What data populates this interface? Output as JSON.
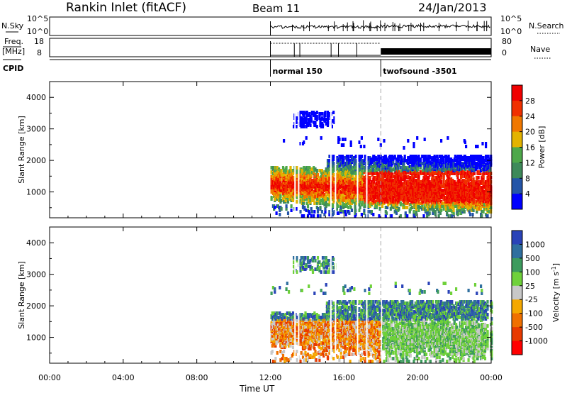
{
  "header": {
    "station": "Rankin Inlet (fitACF)",
    "beam": "Beam 11",
    "date": "24/Jan/2013"
  },
  "status_panels": {
    "nsky_label": "N.Sky",
    "nsearch_label": "N.Search",
    "nsky_ticks": [
      "10^5",
      "10^0"
    ],
    "nsky_right_ticks": [
      "10^5",
      "10^0"
    ],
    "freq_label": "Freq.",
    "freq_unit": "[MHz]",
    "freq_ticks": [
      "18",
      "8"
    ],
    "nave_label": "Nave",
    "nave_ticks": [
      "80",
      "0"
    ],
    "cpid_label": "CPID",
    "modes": [
      {
        "name": "normal 150",
        "start_hour": 12.0,
        "end_hour": 18.0
      },
      {
        "name": "twofsound -3501",
        "start_hour": 18.0,
        "end_hour": 24.0
      }
    ]
  },
  "chart_data": [
    {
      "type": "heatmap",
      "quantity": "power",
      "ylabel": "Slant Range [km]",
      "xlabel": "Time UT",
      "xlim": [
        0,
        24
      ],
      "ylim": [
        180,
        4500
      ],
      "x_ticks": [
        "00:00",
        "04:00",
        "08:00",
        "12:00",
        "16:00",
        "20:00",
        "00:00"
      ],
      "y_ticks": [
        1000,
        2000,
        3000,
        4000
      ],
      "colorbar_label": "Power [dB]",
      "colorbar_ticks": [
        "4",
        "8",
        "12",
        "16",
        "20",
        "24",
        "28"
      ],
      "colors": [
        "#0000ff",
        "#2455a8",
        "#3e8a5a",
        "#4ea84a",
        "#e3b300",
        "#f07800",
        "#f03000",
        "#f00000"
      ],
      "data_start_hour": 12.0,
      "mode_change_hour": 18.0
    },
    {
      "type": "heatmap",
      "quantity": "velocity",
      "ylabel": "Slant Range [km]",
      "xlabel": "Time UT",
      "xlim": [
        0,
        24
      ],
      "ylim": [
        180,
        4500
      ],
      "x_ticks": [
        "00:00",
        "04:00",
        "08:00",
        "12:00",
        "16:00",
        "20:00",
        "00:00"
      ],
      "y_ticks": [
        1000,
        2000,
        3000,
        4000
      ],
      "colorbar_label": "Velocity [m s^-1]",
      "colorbar_ticks": [
        "1000",
        "500",
        "100",
        "25",
        "-25",
        "-100",
        "-500",
        "-1000"
      ],
      "colors": [
        "#2a43b8",
        "#2f6f9f",
        "#3d9b5e",
        "#6fd13a",
        "#c8c8c8",
        "#f5a800",
        "#f07000",
        "#e83a00",
        "#ff0000"
      ],
      "data_start_hour": 12.0,
      "mode_change_hour": 18.0
    }
  ],
  "xlabel": "Time UT"
}
